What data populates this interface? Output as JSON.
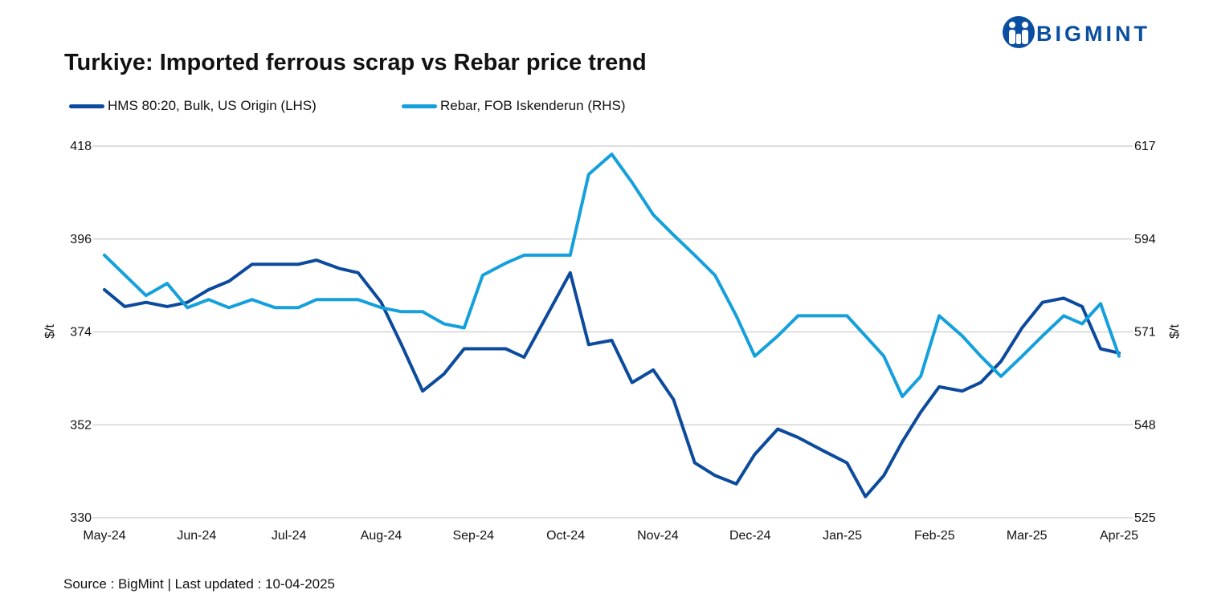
{
  "header": {
    "title": "Turkiye: Imported ferrous scrap vs Rebar price trend",
    "brand": "BIGMINT"
  },
  "footer": {
    "source": "Source : BigMint | Last updated : 10-04-2025"
  },
  "colors": {
    "hms": "#0b4a9c",
    "rebar": "#14a0dc",
    "grid": "#d4d4d4",
    "logo": "#0a4ea0"
  },
  "chart_data": {
    "type": "line",
    "title": "Turkiye: Imported ferrous scrap vs Rebar price trend",
    "xlabel": "",
    "ylabel": "$/t",
    "y2label": "$/t",
    "legend_position": "top-left",
    "grid": true,
    "x_tick_labels": [
      "May-24",
      "Jun-24",
      "Jul-24",
      "Aug-24",
      "Sep-24",
      "Oct-24",
      "Nov-24",
      "Dec-24",
      "Jan-25",
      "Feb-25",
      "Mar-25",
      "Apr-25"
    ],
    "x_range": [
      0,
      11
    ],
    "ylim": [
      330,
      418
    ],
    "y_ticks": [
      330,
      352,
      374,
      396,
      418
    ],
    "y2lim": [
      525,
      617
    ],
    "y2_ticks": [
      525,
      548,
      571,
      594,
      617
    ],
    "series": [
      {
        "name": "HMS 80:20, Bulk, US Origin (LHS)",
        "axis": "left",
        "color": "#0b4a9c",
        "x": [
          0,
          0.22,
          0.45,
          0.68,
          0.9,
          1.13,
          1.35,
          1.6,
          1.85,
          2.1,
          2.3,
          2.55,
          2.75,
          3.0,
          3.22,
          3.45,
          3.68,
          3.9,
          4.1,
          4.35,
          4.55,
          4.8,
          5.05,
          5.25,
          5.5,
          5.72,
          5.95,
          6.17,
          6.4,
          6.62,
          6.85,
          7.05,
          7.3,
          7.52,
          7.78,
          8.05,
          8.25,
          8.45,
          8.65,
          8.85,
          9.05,
          9.3,
          9.5,
          9.72,
          9.95,
          10.17,
          10.4,
          10.6,
          10.8,
          11.0
        ],
        "values": [
          384,
          380,
          381,
          380,
          381,
          384,
          386,
          390,
          390,
          390,
          391,
          389,
          388,
          381,
          371,
          360,
          364,
          370,
          370,
          370,
          368,
          378,
          388,
          371,
          372,
          362,
          365,
          358,
          343,
          340,
          338,
          345,
          351,
          349,
          346,
          343,
          335,
          340,
          348,
          355,
          361,
          360,
          362,
          367,
          375,
          381,
          382,
          380,
          370,
          369
        ]
      },
      {
        "name": "Rebar, FOB Iskenderun (RHS)",
        "axis": "right",
        "color": "#14a0dc",
        "x": [
          0,
          0.45,
          0.68,
          0.9,
          1.13,
          1.35,
          1.6,
          1.85,
          2.1,
          2.3,
          2.55,
          2.75,
          3.0,
          3.22,
          3.45,
          3.68,
          3.9,
          4.1,
          4.35,
          4.55,
          4.8,
          5.05,
          5.25,
          5.5,
          5.72,
          5.95,
          6.17,
          6.4,
          6.62,
          6.85,
          7.05,
          7.3,
          7.52,
          7.78,
          8.05,
          8.25,
          8.45,
          8.65,
          8.85,
          9.05,
          9.3,
          9.5,
          9.72,
          9.95,
          10.17,
          10.4,
          10.6,
          10.8,
          11.0
        ],
        "values": [
          590,
          580,
          583,
          577,
          579,
          577,
          579,
          577,
          577,
          579,
          579,
          579,
          577,
          576,
          576,
          573,
          572,
          585,
          588,
          590,
          590,
          590,
          610,
          615,
          608,
          600,
          595,
          590,
          585,
          575,
          565,
          570,
          575,
          575,
          575,
          570,
          565,
          555,
          560,
          575,
          570,
          565,
          560,
          565,
          570,
          575,
          573,
          578,
          565
        ]
      }
    ]
  }
}
